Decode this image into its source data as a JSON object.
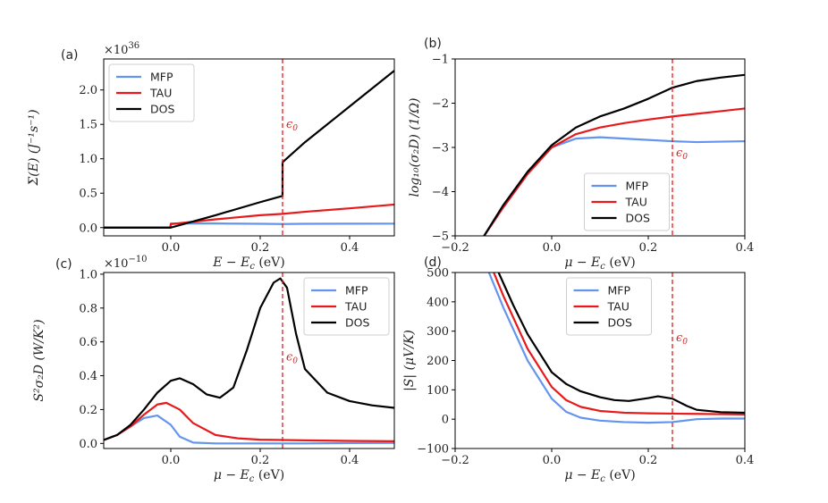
{
  "colors": {
    "MFP": "#6495ed",
    "TAU": "#e8191b",
    "DOS": "#000000",
    "eps_line": "#e8191b"
  },
  "chart_data": [
    {
      "panel": "(a)",
      "type": "line",
      "xlabel": "E − E",
      "xlabel_sub": "c",
      "xlabel_unit": " (eV)",
      "ylabel": "Σ(E) (J⁻¹s⁻¹)",
      "multiplier": "×10",
      "multiplier_exp": "36",
      "xlim": [
        -0.15,
        0.5
      ],
      "ylim": [
        -0.12,
        2.45
      ],
      "xticks": [
        0.0,
        0.2,
        0.4
      ],
      "xticklabels": [
        "0.0",
        "0.2",
        "0.4"
      ],
      "yticks": [
        0.0,
        0.5,
        1.0,
        1.5,
        2.0
      ],
      "yticklabels": [
        "0.0",
        "0.5",
        "1.0",
        "1.5",
        "2.0"
      ],
      "eps_x": 0.25,
      "eps_label": "ϵ",
      "eps_sub": "0",
      "eps_label_y": 1.45,
      "legend": "top-left",
      "series": [
        {
          "name": "MFP",
          "x": [
            -0.15,
            -0.001,
            0.0,
            0.1,
            0.2,
            0.25,
            0.3,
            0.4,
            0.5
          ],
          "y": [
            0.0,
            0.0,
            0.06,
            0.06,
            0.055,
            0.052,
            0.055,
            0.057,
            0.058
          ]
        },
        {
          "name": "TAU",
          "x": [
            -0.15,
            -0.001,
            0.0,
            0.1,
            0.2,
            0.25,
            0.3,
            0.4,
            0.5
          ],
          "y": [
            0.0,
            0.0,
            0.05,
            0.12,
            0.18,
            0.2,
            0.23,
            0.28,
            0.335
          ]
        },
        {
          "name": "DOS",
          "x": [
            -0.15,
            -0.001,
            0.0,
            0.1,
            0.2,
            0.2499,
            0.25,
            0.3,
            0.4,
            0.5
          ],
          "y": [
            0.0,
            0.0,
            0.0,
            0.18,
            0.37,
            0.46,
            0.95,
            1.24,
            1.76,
            2.28
          ]
        }
      ]
    },
    {
      "panel": "(b)",
      "type": "line",
      "xlabel": "μ − E",
      "xlabel_sub": "c",
      "xlabel_unit": " (eV)",
      "ylabel": "log₁₀(σ₂D) (1/Ω)",
      "xlim": [
        -0.2,
        0.4
      ],
      "ylim": [
        -5,
        -1
      ],
      "xticks": [
        -0.2,
        0.0,
        0.2,
        0.4
      ],
      "xticklabels": [
        "−0.2",
        "0.0",
        "0.2",
        "0.4"
      ],
      "yticks": [
        -5,
        -4,
        -3,
        -2,
        -1
      ],
      "yticklabels": [
        "−5",
        "−4",
        "−3",
        "−2",
        "−1"
      ],
      "eps_x": 0.25,
      "eps_label": "ϵ",
      "eps_sub": "0",
      "eps_label_y": -3.2,
      "legend": "lower-center",
      "series": [
        {
          "name": "MFP",
          "x": [
            -0.14,
            -0.1,
            -0.05,
            0.0,
            0.05,
            0.1,
            0.15,
            0.2,
            0.25,
            0.3,
            0.35,
            0.4
          ],
          "y": [
            -5.0,
            -4.35,
            -3.6,
            -3.0,
            -2.8,
            -2.77,
            -2.8,
            -2.83,
            -2.86,
            -2.88,
            -2.87,
            -2.86
          ]
        },
        {
          "name": "TAU",
          "x": [
            -0.14,
            -0.1,
            -0.05,
            0.0,
            0.05,
            0.1,
            0.15,
            0.2,
            0.25,
            0.3,
            0.35,
            0.4
          ],
          "y": [
            -5.0,
            -4.35,
            -3.6,
            -3.0,
            -2.7,
            -2.55,
            -2.45,
            -2.37,
            -2.3,
            -2.24,
            -2.18,
            -2.12
          ]
        },
        {
          "name": "DOS",
          "x": [
            -0.14,
            -0.1,
            -0.05,
            0.0,
            0.05,
            0.1,
            0.15,
            0.2,
            0.25,
            0.3,
            0.35,
            0.4
          ],
          "y": [
            -5.0,
            -4.3,
            -3.55,
            -2.95,
            -2.55,
            -2.3,
            -2.12,
            -1.9,
            -1.65,
            -1.5,
            -1.42,
            -1.36
          ]
        }
      ]
    },
    {
      "panel": "(c)",
      "type": "line",
      "xlabel": "μ − E",
      "xlabel_sub": "c",
      "xlabel_unit": " (eV)",
      "ylabel": "S²σ₂D (W/K²)",
      "multiplier": "×10",
      "multiplier_exp": "−10",
      "xlim": [
        -0.15,
        0.5
      ],
      "ylim": [
        -0.03,
        1.01
      ],
      "xticks": [
        0.0,
        0.2,
        0.4
      ],
      "xticklabels": [
        "0.0",
        "0.2",
        "0.4"
      ],
      "yticks": [
        0.0,
        0.2,
        0.4,
        0.6,
        0.8,
        1.0
      ],
      "yticklabels": [
        "0.0",
        "0.2",
        "0.4",
        "0.6",
        "0.8",
        "1.0"
      ],
      "eps_x": 0.25,
      "eps_label": "ϵ",
      "eps_sub": "0",
      "eps_label_y": 0.49,
      "legend": "top-right",
      "series": [
        {
          "name": "MFP",
          "x": [
            -0.15,
            -0.12,
            -0.09,
            -0.06,
            -0.03,
            0.0,
            0.02,
            0.05,
            0.1,
            0.2,
            0.3,
            0.4,
            0.5
          ],
          "y": [
            0.02,
            0.05,
            0.1,
            0.15,
            0.165,
            0.11,
            0.04,
            0.005,
            0.0,
            0.0,
            0.0,
            0.002,
            0.003
          ]
        },
        {
          "name": "TAU",
          "x": [
            -0.15,
            -0.12,
            -0.09,
            -0.06,
            -0.03,
            -0.01,
            0.02,
            0.05,
            0.1,
            0.15,
            0.2,
            0.3,
            0.4,
            0.5
          ],
          "y": [
            0.02,
            0.05,
            0.1,
            0.17,
            0.23,
            0.24,
            0.2,
            0.12,
            0.05,
            0.03,
            0.022,
            0.018,
            0.015,
            0.013
          ]
        },
        {
          "name": "DOS",
          "x": [
            -0.15,
            -0.12,
            -0.09,
            -0.06,
            -0.03,
            0.0,
            0.02,
            0.05,
            0.08,
            0.11,
            0.14,
            0.17,
            0.2,
            0.23,
            0.245,
            0.26,
            0.28,
            0.3,
            0.35,
            0.4,
            0.45,
            0.5
          ],
          "y": [
            0.02,
            0.05,
            0.11,
            0.2,
            0.3,
            0.37,
            0.385,
            0.35,
            0.29,
            0.27,
            0.33,
            0.55,
            0.8,
            0.95,
            0.975,
            0.92,
            0.65,
            0.44,
            0.3,
            0.25,
            0.225,
            0.21
          ]
        }
      ]
    },
    {
      "panel": "(d)",
      "type": "line",
      "xlabel": "μ − E",
      "xlabel_sub": "c",
      "xlabel_unit": " (eV)",
      "ylabel": "|S| (μV/K)",
      "xlim": [
        -0.2,
        0.4
      ],
      "ylim": [
        -100,
        500
      ],
      "xticks": [
        -0.2,
        0.0,
        0.2,
        0.4
      ],
      "xticklabels": [
        "−0.2",
        "0.0",
        "0.2",
        "0.4"
      ],
      "yticks": [
        -100,
        0,
        100,
        200,
        300,
        400,
        500
      ],
      "yticklabels": [
        "−100",
        "0",
        "100",
        "200",
        "300",
        "400",
        "500"
      ],
      "eps_x": 0.25,
      "eps_label": "ϵ",
      "eps_sub": "0",
      "eps_label_y": 265,
      "legend": "top-center",
      "series": [
        {
          "name": "MFP",
          "x": [
            -0.13,
            -0.1,
            -0.05,
            0.0,
            0.03,
            0.06,
            0.1,
            0.15,
            0.2,
            0.25,
            0.3,
            0.35,
            0.4
          ],
          "y": [
            500,
            380,
            200,
            70,
            25,
            5,
            -5,
            -10,
            -12,
            -10,
            0,
            2,
            2
          ]
        },
        {
          "name": "TAU",
          "x": [
            -0.12,
            -0.1,
            -0.05,
            0.0,
            0.03,
            0.06,
            0.1,
            0.15,
            0.2,
            0.25,
            0.3,
            0.35,
            0.4
          ],
          "y": [
            500,
            420,
            240,
            110,
            65,
            42,
            28,
            22,
            20,
            19,
            18,
            17,
            16
          ]
        },
        {
          "name": "DOS",
          "x": [
            -0.11,
            -0.08,
            -0.05,
            0.0,
            0.03,
            0.06,
            0.1,
            0.13,
            0.16,
            0.2,
            0.22,
            0.25,
            0.28,
            0.3,
            0.35,
            0.4
          ],
          "y": [
            500,
            390,
            290,
            160,
            120,
            95,
            75,
            65,
            62,
            72,
            78,
            70,
            45,
            32,
            24,
            22
          ]
        }
      ]
    }
  ]
}
